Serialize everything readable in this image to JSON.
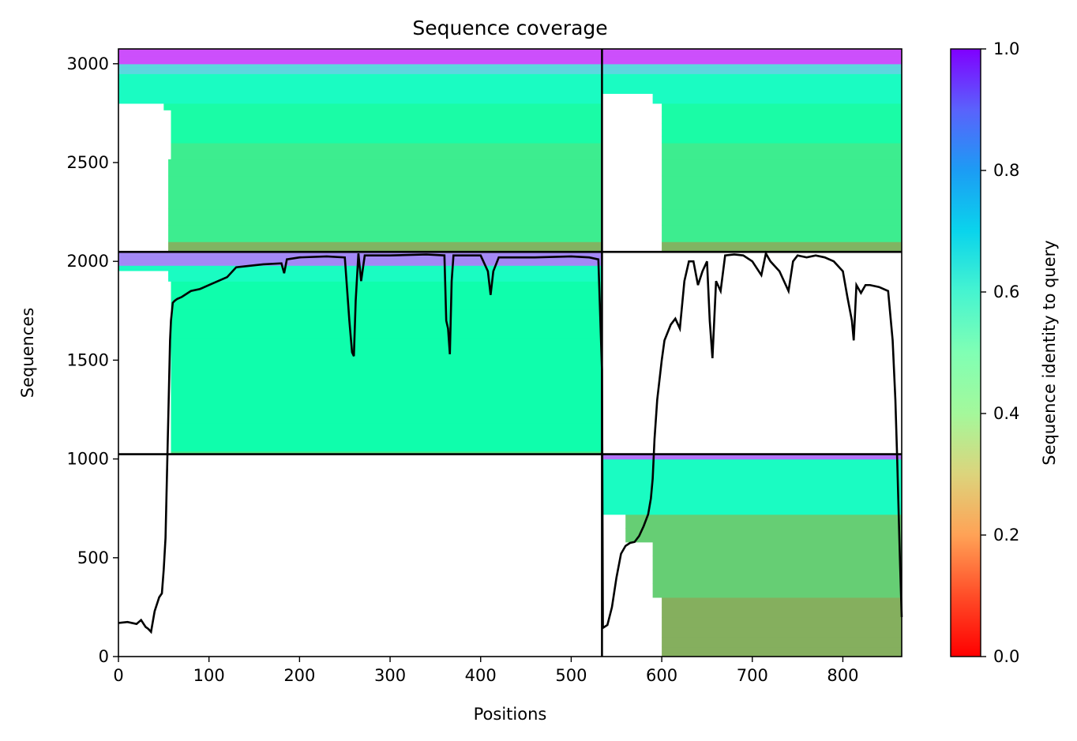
{
  "chart_data": {
    "type": "heatmap",
    "title": "Sequence coverage",
    "xlabel": "Positions",
    "ylabel": "Sequences",
    "xlim": [
      0,
      865
    ],
    "ylim": [
      0,
      3075
    ],
    "x_ticks": [
      0,
      100,
      200,
      300,
      400,
      500,
      600,
      700,
      800
    ],
    "y_ticks": [
      0,
      500,
      1000,
      1500,
      2000,
      2500,
      3000
    ],
    "chain_boundary_x": 534,
    "group_boundaries_y": [
      1024,
      2048
    ],
    "colorbar": {
      "label": "Sequence identity to query",
      "ticks": [
        0.0,
        0.2,
        0.4,
        0.6,
        0.8,
        1.0
      ],
      "tick_labels": [
        "0.0",
        "0.2",
        "0.4",
        "0.6",
        "0.8",
        "1.0"
      ],
      "colormap": "rainbow_r"
    },
    "blocks": [
      {
        "group": "top",
        "x_start": 0,
        "x_end": 534,
        "y_start": 2048,
        "y_end": 3075,
        "coverage_start_profile": [
          [
            2048,
            55
          ],
          [
            2500,
            58
          ],
          [
            2780,
            50
          ],
          [
            2800,
            0
          ]
        ],
        "identity_bands": [
          {
            "y0": 2048,
            "y1": 2100,
            "identity": 0.25
          },
          {
            "y0": 2100,
            "y1": 2600,
            "identity": 0.38
          },
          {
            "y0": 2600,
            "y1": 2800,
            "identity": 0.45
          },
          {
            "y0": 2800,
            "y1": 2950,
            "identity": 0.55
          },
          {
            "y0": 2950,
            "y1": 3000,
            "identity": 0.68
          },
          {
            "y0": 3000,
            "y1": 3075,
            "identity": 0.9
          }
        ]
      },
      {
        "group": "top",
        "x_start": 534,
        "x_end": 865,
        "y_start": 2048,
        "y_end": 3075,
        "coverage_start_profile": [
          [
            2048,
            600
          ],
          [
            2800,
            590
          ],
          [
            2850,
            534
          ]
        ],
        "identity_bands": [
          {
            "y0": 2048,
            "y1": 2100,
            "identity": 0.25
          },
          {
            "y0": 2100,
            "y1": 2600,
            "identity": 0.38
          },
          {
            "y0": 2600,
            "y1": 2800,
            "identity": 0.45
          },
          {
            "y0": 2800,
            "y1": 2950,
            "identity": 0.55
          },
          {
            "y0": 2950,
            "y1": 3000,
            "identity": 0.68
          },
          {
            "y0": 3000,
            "y1": 3075,
            "identity": 0.9
          }
        ]
      },
      {
        "group": "middle",
        "x_start": 0,
        "x_end": 534,
        "y_start": 1024,
        "y_end": 2048,
        "coverage_start_profile": [
          [
            1024,
            58
          ],
          [
            1900,
            55
          ],
          [
            1950,
            0
          ]
        ],
        "identity_bands": [
          {
            "y0": 1024,
            "y1": 1040,
            "identity": 0.35
          },
          {
            "y0": 1040,
            "y1": 1900,
            "identity": 0.47
          },
          {
            "y0": 1900,
            "y1": 1980,
            "identity": 0.55
          },
          {
            "y0": 1980,
            "y1": 2048,
            "identity": 0.82
          }
        ]
      },
      {
        "group": "bottom",
        "x_start": 534,
        "x_end": 865,
        "y_start": 0,
        "y_end": 1024,
        "coverage_start_profile": [
          [
            0,
            600
          ],
          [
            300,
            590
          ],
          [
            600,
            560
          ],
          [
            720,
            545
          ],
          [
            730,
            534
          ]
        ],
        "identity_bands": [
          {
            "y0": 0,
            "y1": 300,
            "identity": 0.24
          },
          {
            "y0": 300,
            "y1": 720,
            "identity": 0.3
          },
          {
            "y0": 720,
            "y1": 1000,
            "identity": 0.55
          },
          {
            "y0": 1000,
            "y1": 1024,
            "identity": 0.85
          }
        ]
      }
    ],
    "series": [
      {
        "type": "line",
        "x": [
          0,
          10,
          20,
          25,
          30,
          33,
          36,
          40,
          45,
          48,
          50,
          52,
          53,
          54,
          55,
          56,
          57,
          58,
          60,
          62,
          65,
          70,
          80,
          90,
          100,
          120,
          130,
          140,
          160,
          180,
          183,
          186,
          200,
          230,
          250,
          255,
          258,
          260,
          262,
          265,
          268,
          272,
          300,
          340,
          360,
          362,
          364,
          366,
          368,
          370,
          400,
          408,
          411,
          414,
          420,
          460,
          500,
          520,
          530,
          534,
          535,
          540,
          545,
          550,
          555,
          560,
          565,
          570,
          575,
          580,
          585,
          588,
          590,
          592,
          595,
          600,
          603,
          610,
          615,
          620,
          625,
          630,
          635,
          640,
          645,
          650,
          653,
          656,
          660,
          665,
          670,
          680,
          690,
          700,
          710,
          715,
          720,
          730,
          740,
          745,
          750,
          760,
          770,
          780,
          790,
          800,
          805,
          810,
          812,
          815,
          820,
          825,
          830,
          840,
          850,
          855,
          858,
          860,
          863,
          865
        ],
        "y": [
          170,
          175,
          165,
          185,
          150,
          140,
          125,
          230,
          300,
          320,
          440,
          600,
          800,
          1000,
          1200,
          1400,
          1600,
          1700,
          1790,
          1800,
          1810,
          1820,
          1850,
          1860,
          1880,
          1920,
          1970,
          1975,
          1985,
          1990,
          1940,
          2010,
          2020,
          2025,
          2020,
          1700,
          1540,
          1520,
          1800,
          2040,
          1900,
          2030,
          2030,
          2035,
          2030,
          1700,
          1660,
          1530,
          1900,
          2030,
          2030,
          1950,
          1830,
          1950,
          2020,
          2020,
          2025,
          2020,
          2010,
          1450,
          145,
          160,
          250,
          400,
          520,
          560,
          575,
          580,
          610,
          660,
          720,
          800,
          900,
          1100,
          1300,
          1500,
          1600,
          1680,
          1710,
          1660,
          1900,
          2000,
          2000,
          1880,
          1950,
          2000,
          1700,
          1510,
          1900,
          1850,
          2030,
          2035,
          2030,
          2000,
          1930,
          2040,
          2000,
          1950,
          1850,
          2000,
          2030,
          2020,
          2030,
          2020,
          2000,
          1950,
          1820,
          1700,
          1600,
          1880,
          1840,
          1880,
          1880,
          1870,
          1850,
          1600,
          1300,
          1000,
          500,
          200
        ]
      }
    ]
  }
}
